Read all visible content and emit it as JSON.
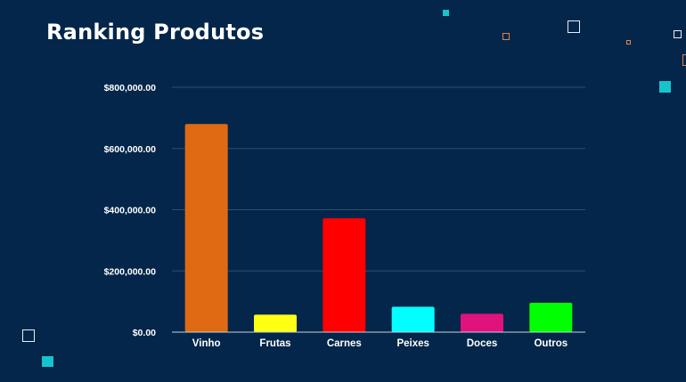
{
  "page": {
    "title": "Ranking Produtos",
    "background": "#03264a"
  },
  "chart_data": {
    "type": "bar",
    "categories": [
      "Vinho",
      "Frutas",
      "Carnes",
      "Peixes",
      "Doces",
      "Outros"
    ],
    "values": [
      680000,
      57000,
      372000,
      83000,
      60000,
      96000
    ],
    "colors": [
      "#e06a14",
      "#ffff14",
      "#ff0000",
      "#00ffff",
      "#e0127c",
      "#00ff00"
    ],
    "ylim": [
      0,
      800000
    ],
    "yticks": [
      0,
      200000,
      400000,
      600000,
      800000
    ],
    "ytick_labels": [
      "$0.00",
      "$200,000.00",
      "$400,000.00",
      "$600,000.00",
      "$800,000.00"
    ],
    "grid": true,
    "legend": "none",
    "title": "",
    "xlabel": "",
    "ylabel": ""
  }
}
